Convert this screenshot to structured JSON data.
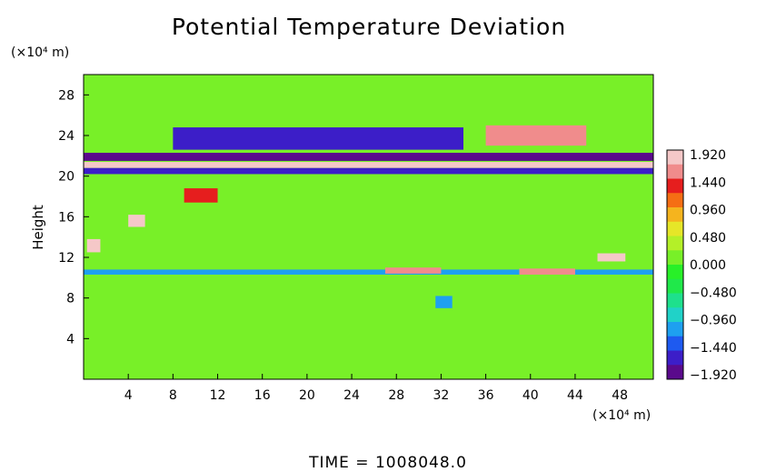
{
  "chart_data": {
    "type": "heatmap",
    "title": "Potential Temperature Deviation",
    "ylabel": "Height",
    "x_units": "(×10⁴ m)",
    "y_units": "(×10⁴ m)",
    "footer": "TIME  =  1008048.0",
    "x_ticks": [
      4,
      8,
      12,
      16,
      20,
      24,
      28,
      32,
      36,
      40,
      44,
      48
    ],
    "y_ticks": [
      4,
      8,
      12,
      16,
      20,
      24,
      28
    ],
    "xlim": [
      0,
      51
    ],
    "ylim": [
      0,
      30
    ],
    "colorbar": {
      "labels": [
        "1.920",
        "1.440",
        "0.960",
        "0.480",
        "0.000",
        "−0.480",
        "−0.960",
        "−1.440",
        "−1.920"
      ],
      "range": [
        -1.92,
        1.92
      ],
      "colors": [
        "#5a0a8c",
        "#3c1ec8",
        "#1e5af0",
        "#1ea0f0",
        "#20d2c8",
        "#1ee08c",
        "#20e84a",
        "#28f028",
        "#78f028",
        "#b4f028",
        "#e6e628",
        "#f5b41e",
        "#f56e14",
        "#e61e1e",
        "#f08c8c",
        "#f5c8c8"
      ]
    },
    "background_value": 0.1,
    "features": [
      {
        "x_range": [
          0,
          51
        ],
        "y_range": [
          21.5,
          22.3
        ],
        "value": -1.9
      },
      {
        "x_range": [
          0,
          51
        ],
        "y_range": [
          20.8,
          21.4
        ],
        "value": 1.9
      },
      {
        "x_range": [
          0,
          51
        ],
        "y_range": [
          20.2,
          20.8
        ],
        "value": -1.6
      },
      {
        "x_range": [
          8,
          34
        ],
        "y_range": [
          22.6,
          24.8
        ],
        "value": -1.5
      },
      {
        "x_range": [
          36,
          45
        ],
        "y_range": [
          23.0,
          25.0
        ],
        "value": 1.6
      },
      {
        "x_range": [
          0,
          51
        ],
        "y_range": [
          10.3,
          10.8
        ],
        "value": -1.0
      },
      {
        "x_range": [
          27,
          32
        ],
        "y_range": [
          10.4,
          11.0
        ],
        "value": 1.5
      },
      {
        "x_range": [
          39,
          44
        ],
        "y_range": [
          10.3,
          10.9
        ],
        "value": 1.5
      },
      {
        "x_range": [
          4,
          5.5
        ],
        "y_range": [
          15.0,
          16.2
        ],
        "value": 1.8
      },
      {
        "x_range": [
          46,
          48.5
        ],
        "y_range": [
          11.6,
          12.4
        ],
        "value": 1.8
      },
      {
        "x_range": [
          0.3,
          1.5
        ],
        "y_range": [
          12.5,
          13.8
        ],
        "value": 1.8
      },
      {
        "x_range": [
          9,
          12
        ],
        "y_range": [
          17.4,
          18.8
        ],
        "value": 1.2
      },
      {
        "x_range": [
          31.5,
          33
        ],
        "y_range": [
          7.0,
          8.2
        ],
        "value": -1.2
      }
    ]
  }
}
